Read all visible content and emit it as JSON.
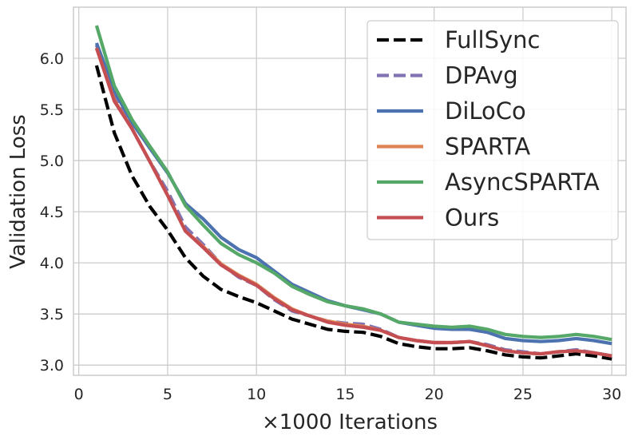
{
  "chart_data": {
    "type": "line",
    "title": "",
    "xlabel": "×1000 Iterations",
    "ylabel": "Validation Loss",
    "xlim": [
      -0.3,
      30.8
    ],
    "ylim": [
      2.9,
      6.5
    ],
    "xticks": [
      0,
      5,
      10,
      15,
      20,
      25,
      30
    ],
    "yticks": [
      3.0,
      3.5,
      4.0,
      4.5,
      5.0,
      5.5,
      6.0
    ],
    "xtick_labels": [
      "0",
      "5",
      "10",
      "15",
      "20",
      "25",
      "30"
    ],
    "ytick_labels": [
      "3.0",
      "3.5",
      "4.0",
      "4.5",
      "5.0",
      "5.5",
      "6.0"
    ],
    "grid": true,
    "legend_position": "top-right",
    "x": [
      1,
      2,
      3,
      4,
      5,
      6,
      7,
      8,
      9,
      10,
      11,
      12,
      13,
      14,
      15,
      16,
      17,
      18,
      19,
      20,
      21,
      22,
      23,
      24,
      25,
      26,
      27,
      28,
      29,
      30
    ],
    "series": [
      {
        "name": "FullSync",
        "color": "#000000",
        "dash": "dashed",
        "values": [
          5.93,
          5.27,
          4.85,
          4.55,
          4.32,
          4.05,
          3.87,
          3.74,
          3.67,
          3.61,
          3.53,
          3.45,
          3.4,
          3.35,
          3.33,
          3.32,
          3.28,
          3.21,
          3.18,
          3.16,
          3.16,
          3.17,
          3.14,
          3.1,
          3.08,
          3.07,
          3.09,
          3.11,
          3.09,
          3.06
        ]
      },
      {
        "name": "DPAvg",
        "color": "#8172B3",
        "dash": "dashed",
        "values": [
          6.13,
          5.62,
          5.31,
          4.99,
          4.7,
          4.35,
          4.18,
          3.99,
          3.86,
          3.78,
          3.64,
          3.53,
          3.48,
          3.43,
          3.41,
          3.4,
          3.35,
          3.27,
          3.24,
          3.22,
          3.22,
          3.23,
          3.2,
          3.15,
          3.13,
          3.11,
          3.13,
          3.15,
          3.12,
          3.09
        ]
      },
      {
        "name": "DiLoCo",
        "color": "#4C72B0",
        "dash": "solid",
        "values": [
          6.15,
          5.68,
          5.37,
          5.12,
          4.88,
          4.58,
          4.43,
          4.25,
          4.13,
          4.05,
          3.92,
          3.79,
          3.71,
          3.63,
          3.58,
          3.54,
          3.5,
          3.42,
          3.39,
          3.36,
          3.35,
          3.35,
          3.32,
          3.26,
          3.24,
          3.23,
          3.24,
          3.26,
          3.24,
          3.21
        ]
      },
      {
        "name": "SPARTA",
        "color": "#DD8452",
        "dash": "solid",
        "values": [
          6.1,
          5.59,
          5.31,
          4.99,
          4.66,
          4.31,
          4.16,
          3.99,
          3.88,
          3.79,
          3.66,
          3.55,
          3.48,
          3.43,
          3.4,
          3.38,
          3.34,
          3.27,
          3.24,
          3.22,
          3.22,
          3.23,
          3.19,
          3.14,
          3.12,
          3.11,
          3.13,
          3.14,
          3.12,
          3.09
        ]
      },
      {
        "name": "AsyncSPARTA",
        "color": "#55A868",
        "dash": "solid",
        "values": [
          6.32,
          5.73,
          5.4,
          5.14,
          4.89,
          4.56,
          4.37,
          4.19,
          4.08,
          4.0,
          3.9,
          3.77,
          3.69,
          3.62,
          3.58,
          3.55,
          3.5,
          3.42,
          3.4,
          3.38,
          3.37,
          3.38,
          3.35,
          3.3,
          3.28,
          3.27,
          3.28,
          3.3,
          3.28,
          3.25
        ]
      },
      {
        "name": "Ours",
        "color": "#C44E52",
        "dash": "solid",
        "values": [
          6.1,
          5.58,
          5.31,
          4.99,
          4.66,
          4.31,
          4.15,
          3.98,
          3.87,
          3.78,
          3.65,
          3.54,
          3.48,
          3.42,
          3.39,
          3.37,
          3.34,
          3.27,
          3.24,
          3.22,
          3.22,
          3.23,
          3.19,
          3.14,
          3.12,
          3.11,
          3.13,
          3.14,
          3.12,
          3.09
        ]
      }
    ]
  }
}
